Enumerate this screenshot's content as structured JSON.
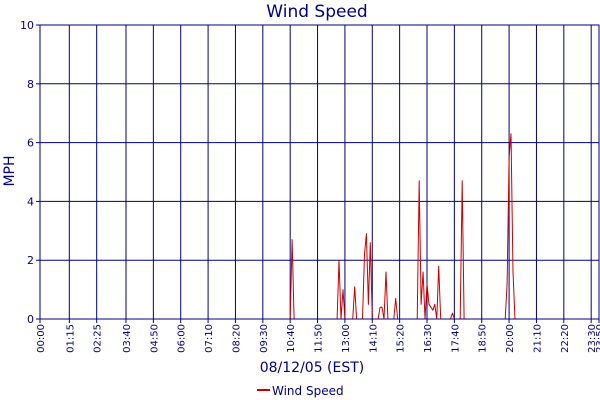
{
  "chart_data": {
    "type": "line",
    "title": "Wind Speed",
    "xlabel": "08/12/05 (EST)",
    "ylabel": "MPH",
    "ylim": [
      0,
      10
    ],
    "yticks": [
      0,
      2,
      4,
      6,
      8,
      10
    ],
    "xlim": [
      "00:00",
      "23:50"
    ],
    "x_tick_labels": [
      "00:00",
      "01:15",
      "02:25",
      "03:40",
      "04:50",
      "06:00",
      "07:10",
      "08:20",
      "09:30",
      "10:40",
      "11:50",
      "13:00",
      "14:10",
      "15:20",
      "16:30",
      "17:40",
      "18:50",
      "20:00",
      "21:10",
      "22:20",
      "23:30",
      "23:50"
    ],
    "grid": true,
    "legend_position": "bottom-center",
    "colors": {
      "series": "#cc0000",
      "grid": "#000080",
      "text": "#000080"
    },
    "series": [
      {
        "name": "Wind Speed",
        "points": [
          [
            "00:00",
            0
          ],
          [
            "10:40",
            0
          ],
          [
            "10:45",
            2.7
          ],
          [
            "10:50",
            0
          ],
          [
            "12:40",
            0
          ],
          [
            "12:45",
            2.0
          ],
          [
            "12:50",
            0
          ],
          [
            "12:55",
            1.0
          ],
          [
            "13:00",
            0
          ],
          [
            "13:20",
            0
          ],
          [
            "13:25",
            1.1
          ],
          [
            "13:30",
            0
          ],
          [
            "13:45",
            0
          ],
          [
            "13:50",
            2.2
          ],
          [
            "13:55",
            2.9
          ],
          [
            "14:00",
            0.5
          ],
          [
            "14:05",
            2.6
          ],
          [
            "14:10",
            0
          ],
          [
            "14:25",
            0
          ],
          [
            "14:30",
            0.4
          ],
          [
            "14:35",
            0.4
          ],
          [
            "14:40",
            0
          ],
          [
            "14:45",
            1.6
          ],
          [
            "14:50",
            0
          ],
          [
            "15:05",
            0
          ],
          [
            "15:10",
            0.7
          ],
          [
            "15:15",
            0
          ],
          [
            "16:05",
            0
          ],
          [
            "16:10",
            4.7
          ],
          [
            "16:15",
            0.5
          ],
          [
            "16:20",
            1.6
          ],
          [
            "16:25",
            0
          ],
          [
            "16:30",
            1.2
          ],
          [
            "16:35",
            0.5
          ],
          [
            "16:45",
            0.3
          ],
          [
            "16:50",
            0.5
          ],
          [
            "16:55",
            0
          ],
          [
            "17:00",
            1.8
          ],
          [
            "17:05",
            0
          ],
          [
            "17:30",
            0
          ],
          [
            "17:35",
            0.2
          ],
          [
            "17:40",
            0
          ],
          [
            "17:55",
            0
          ],
          [
            "18:00",
            4.7
          ],
          [
            "18:05",
            0
          ],
          [
            "19:50",
            0
          ],
          [
            "19:55",
            1.2
          ],
          [
            "20:00",
            5.5
          ],
          [
            "20:05",
            6.3
          ],
          [
            "20:10",
            1.6
          ],
          [
            "20:15",
            0
          ],
          [
            "23:50",
            0
          ]
        ]
      }
    ]
  }
}
